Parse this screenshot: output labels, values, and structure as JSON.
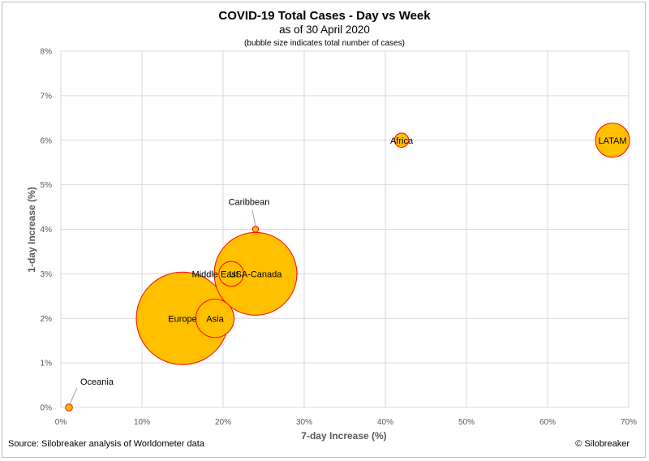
{
  "chart_data": {
    "type": "bubble",
    "title": "COVID-19 Total Cases - Day vs Week",
    "subtitle": "as of 30 April 2020",
    "note": "(bubble size indicates total number of cases)",
    "xlabel": "7-day Increase (%)",
    "ylabel": "1-day Increase (%)",
    "xlim": [
      0,
      70
    ],
    "ylim": [
      0,
      8
    ],
    "x_ticks": [
      "0%",
      "10%",
      "20%",
      "30%",
      "40%",
      "50%",
      "60%",
      "70%"
    ],
    "y_ticks": [
      "0%",
      "1%",
      "2%",
      "3%",
      "4%",
      "5%",
      "6%",
      "7%",
      "8%"
    ],
    "grid": true,
    "bubble_color": "#ffc000",
    "bubble_edge_color": "#ff0000",
    "points": [
      {
        "label": "Europe",
        "x": 15,
        "y": 2,
        "size": 1400000
      },
      {
        "label": "USA-Canada",
        "x": 24,
        "y": 3,
        "size": 1120000
      },
      {
        "label": "Asia",
        "x": 19,
        "y": 2,
        "size": 240000
      },
      {
        "label": "Middle East",
        "x": 21,
        "y": 3,
        "size": 100000
      },
      {
        "label": "LATAM",
        "x": 68,
        "y": 6,
        "size": 190000
      },
      {
        "label": "Africa",
        "x": 42,
        "y": 6,
        "size": 33000
      },
      {
        "label": "Caribbean",
        "x": 24,
        "y": 4,
        "size": 6000
      },
      {
        "label": "Oceania",
        "x": 1,
        "y": 0,
        "size": 8000
      }
    ]
  },
  "footer": {
    "source": "Source: Silobreaker analysis of Worldometer data",
    "copyright": "© Silobreaker"
  }
}
